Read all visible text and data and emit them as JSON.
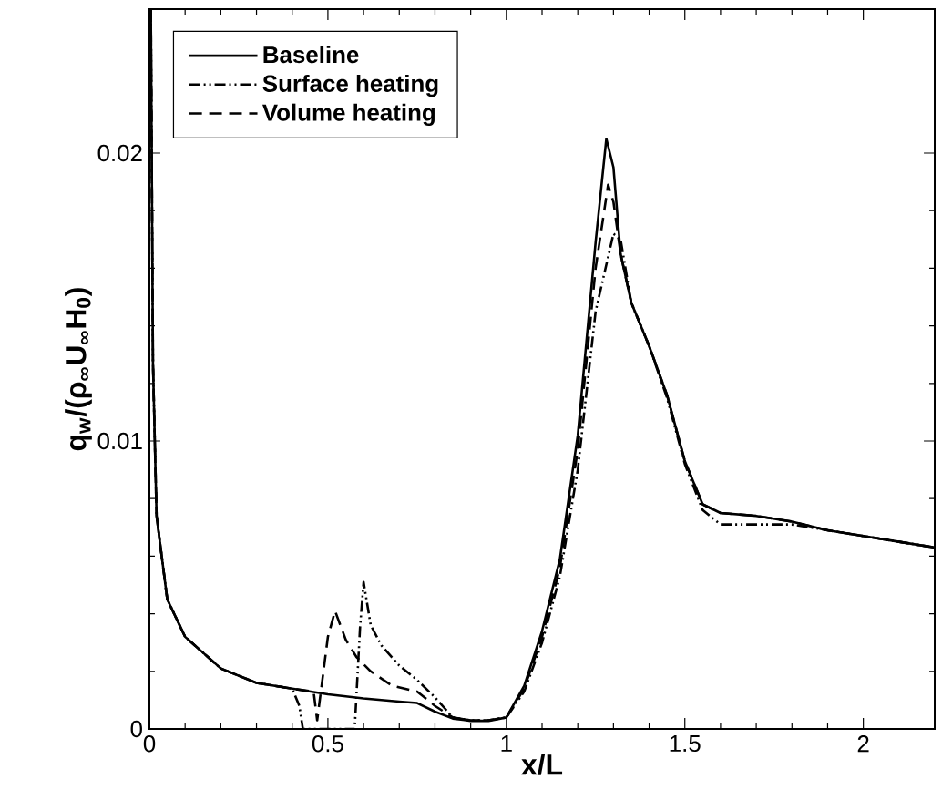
{
  "chart_data": {
    "type": "line",
    "xlabel": "x/L",
    "ylabel": "q$_{w}$/(ρ$_{∞}$U$_{∞}$H$_{0}$)",
    "xlim": [
      0,
      2.2
    ],
    "ylim": [
      0,
      0.025
    ],
    "xticks": [
      0,
      0.5,
      1,
      1.5,
      2
    ],
    "yticks": [
      0,
      0.01,
      0.02
    ],
    "grid": false,
    "legend": "top left",
    "marker": "none",
    "series": [
      {
        "name": "Baseline",
        "color": "#000000",
        "line_style": "solid",
        "x": [
          0.004,
          0.006,
          0.01,
          0.02,
          0.05,
          0.1,
          0.2,
          0.3,
          0.4,
          0.5,
          0.6,
          0.7,
          0.75,
          0.8,
          0.85,
          0.9,
          0.95,
          1.0,
          1.05,
          1.1,
          1.15,
          1.2,
          1.25,
          1.28,
          1.3,
          1.32,
          1.35,
          1.4,
          1.45,
          1.5,
          1.55,
          1.6,
          1.7,
          1.8,
          1.9,
          2.0,
          2.1,
          2.2
        ],
        "values": [
          0.025,
          0.021,
          0.0127,
          0.0074,
          0.0045,
          0.0032,
          0.0021,
          0.0016,
          0.0014,
          0.0012,
          0.00106,
          0.00095,
          0.0009,
          0.0006,
          0.00036,
          0.00028,
          0.00028,
          0.0004,
          0.0015,
          0.0034,
          0.0059,
          0.0102,
          0.0169,
          0.0205,
          0.0195,
          0.0165,
          0.0148,
          0.0133,
          0.0116,
          0.0093,
          0.0078,
          0.0075,
          0.0074,
          0.0072,
          0.0069,
          0.0067,
          0.0065,
          0.0063
        ]
      },
      {
        "name": "Surface heating",
        "color": "#000000",
        "line_style": "dashdotdotted",
        "x": [
          0.004,
          0.006,
          0.01,
          0.02,
          0.05,
          0.1,
          0.2,
          0.3,
          0.4,
          0.42,
          0.43,
          0.5,
          0.575,
          0.59,
          0.6,
          0.62,
          0.65,
          0.7,
          0.75,
          0.8,
          0.85,
          0.9,
          0.95,
          1.0,
          1.05,
          1.1,
          1.15,
          1.2,
          1.25,
          1.3,
          1.32,
          1.35,
          1.4,
          1.45,
          1.5,
          1.55,
          1.6,
          1.7,
          1.8,
          1.9,
          2.0,
          2.1,
          2.2
        ],
        "values": [
          0.025,
          0.021,
          0.0127,
          0.0074,
          0.0045,
          0.0032,
          0.0021,
          0.0016,
          0.0014,
          0.0008,
          0,
          0,
          0,
          0.0035,
          0.0051,
          0.0036,
          0.0029,
          0.0022,
          0.0017,
          0.0011,
          0.0004,
          0.0003,
          0.0003,
          0.0004,
          0.0013,
          0.003,
          0.0053,
          0.009,
          0.0145,
          0.0172,
          0.017,
          0.0148,
          0.0133,
          0.0115,
          0.0092,
          0.0076,
          0.0071,
          0.0071,
          0.0071,
          0.0069,
          0.0067,
          0.0065,
          0.0063
        ]
      },
      {
        "name": "Volume heating",
        "color": "#000000",
        "line_style": "dashed",
        "x": [
          0.004,
          0.006,
          0.01,
          0.02,
          0.05,
          0.1,
          0.2,
          0.3,
          0.4,
          0.46,
          0.47,
          0.5,
          0.52,
          0.55,
          0.58,
          0.62,
          0.68,
          0.75,
          0.8,
          0.85,
          0.9,
          0.95,
          1.0,
          1.05,
          1.1,
          1.15,
          1.2,
          1.25,
          1.285,
          1.3,
          1.32,
          1.35,
          1.4,
          1.45,
          1.5,
          1.55,
          1.6,
          1.7,
          1.8,
          1.9,
          2.0,
          2.1,
          2.2
        ],
        "values": [
          0.025,
          0.021,
          0.0127,
          0.0074,
          0.0045,
          0.0032,
          0.0021,
          0.0016,
          0.0014,
          0.0013,
          0.0003,
          0.0032,
          0.0041,
          0.0031,
          0.0025,
          0.002,
          0.0015,
          0.0013,
          0.0008,
          0.0004,
          0.0003,
          0.0003,
          0.0004,
          0.0014,
          0.0032,
          0.0056,
          0.0097,
          0.016,
          0.0189,
          0.0183,
          0.0165,
          0.0148,
          0.0133,
          0.0116,
          0.0093,
          0.0078,
          0.0075,
          0.0074,
          0.0072,
          0.0069,
          0.0067,
          0.0065,
          0.0063
        ]
      }
    ]
  }
}
